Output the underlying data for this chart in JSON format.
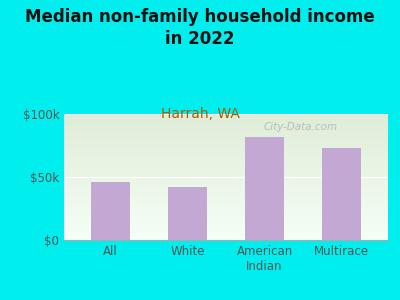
{
  "title": "Median non-family household income\nin 2022",
  "subtitle": "Harrah, WA",
  "categories": [
    "All",
    "White",
    "American\nIndian",
    "Multirace"
  ],
  "values": [
    46000,
    42000,
    82000,
    73000
  ],
  "bar_color": "#c4a8d4",
  "ylim": [
    0,
    100000
  ],
  "yticks": [
    0,
    50000,
    100000
  ],
  "ytick_labels": [
    "$0",
    "$50k",
    "$100k"
  ],
  "background_outer": "#00EEEE",
  "background_inner_top": "#deecd8",
  "background_inner_bottom": "#f5fef5",
  "title_fontsize": 12,
  "subtitle_fontsize": 10,
  "subtitle_color": "#b05a00",
  "title_color": "#111111",
  "tick_color": "#555555",
  "watermark": "City-Data.com"
}
